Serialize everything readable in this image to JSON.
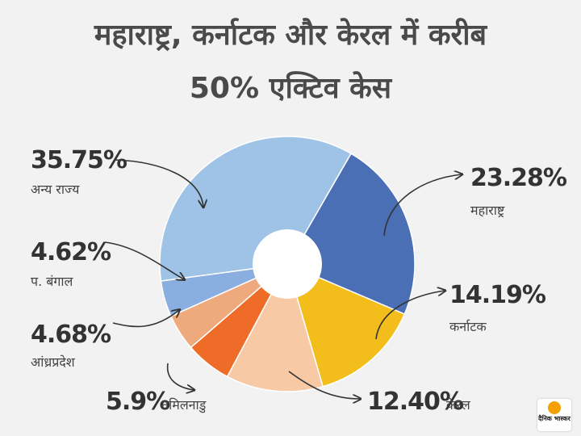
{
  "header": {
    "title_line1": "महाराष्ट्र, कर्नाटक और केरल में करीब",
    "title_line2": "50% एक्टिव केस"
  },
  "logo": {
    "text": "दैनिक भास्कर",
    "sun_color": "#f4a000"
  },
  "chart_data": {
    "type": "pie",
    "title": "महाराष्ट्र, कर्नाटक और केरल में करीब 50% एक्टिव केस",
    "donut": true,
    "slices": [
      {
        "label": "महाराष्ट्र",
        "value": 23.28,
        "value_text": "23.28%",
        "color": "#4a6fb5"
      },
      {
        "label": "कर्नाटक",
        "value": 14.19,
        "value_text": "14.19%",
        "color": "#f3bd1c"
      },
      {
        "label": "केरल",
        "value": 12.4,
        "value_text": "12.40%",
        "color": "#f7c9a5"
      },
      {
        "label": "तमिलनाडु",
        "value": 5.9,
        "value_text": "5.9%",
        "color": "#ef6c28"
      },
      {
        "label": "आंध्रप्रदेश",
        "value": 4.68,
        "value_text": "4.68%",
        "color": "#eea97c"
      },
      {
        "label": "प. बंगाल",
        "value": 4.62,
        "value_text": "4.62%",
        "color": "#8aaee0"
      },
      {
        "label": "अन्य राज्य",
        "value": 35.75,
        "value_text": "35.75%",
        "color": "#9fc3e6"
      }
    ]
  }
}
